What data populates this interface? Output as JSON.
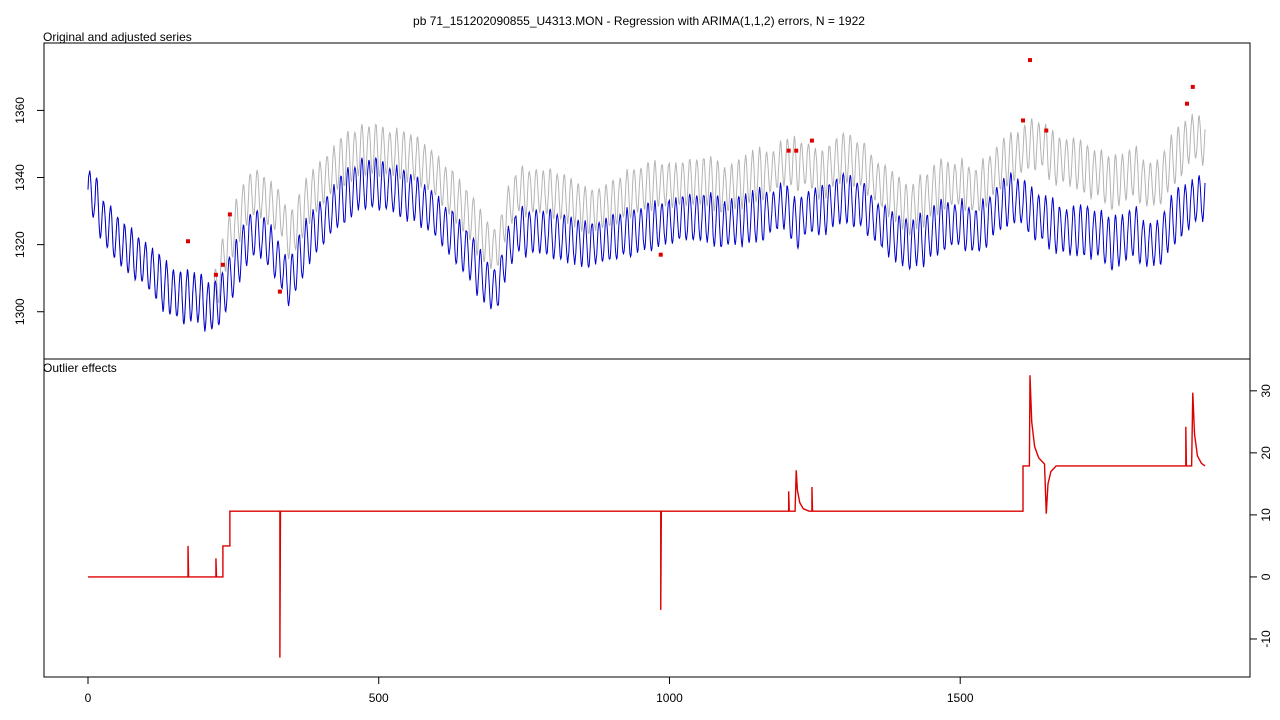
{
  "chart_data": {
    "type": "line",
    "title": "pb 71_151202090855_U4313.MON - Regression with ARIMA(1,1,2) errors, N = 1922",
    "n": 1922,
    "x_ticks": [
      0,
      500,
      1000,
      1500
    ],
    "colors": {
      "original": "#b4b4b4",
      "adjusted": "#0000cc",
      "outliers": "#dd0000",
      "frame": "#000000"
    },
    "panels": [
      {
        "subtitle": "Original and adjusted series",
        "ylim": [
          1288,
          1378
        ],
        "y_ticks": [
          1300,
          1320,
          1340,
          1360
        ],
        "y_axis_side": "left",
        "series": [
          {
            "role": "original",
            "points": [
              [
                0,
                1337
              ],
              [
                15,
                1332
              ],
              [
                30,
                1326
              ],
              [
                60,
                1320
              ],
              [
                100,
                1314
              ],
              [
                130,
                1308
              ],
              [
                160,
                1304
              ],
              [
                175,
                1305
              ],
              [
                190,
                1304
              ],
              [
                210,
                1301
              ],
              [
                220,
                1306
              ],
              [
                235,
                1318
              ],
              [
                245,
                1322
              ],
              [
                260,
                1328
              ],
              [
                275,
                1334
              ],
              [
                290,
                1336
              ],
              [
                310,
                1332
              ],
              [
                330,
                1330
              ],
              [
                345,
                1322
              ],
              [
                360,
                1326
              ],
              [
                380,
                1334
              ],
              [
                410,
                1340
              ],
              [
                440,
                1345
              ],
              [
                470,
                1348
              ],
              [
                500,
                1348
              ],
              [
                530,
                1347
              ],
              [
                560,
                1346
              ],
              [
                590,
                1342
              ],
              [
                620,
                1336
              ],
              [
                650,
                1330
              ],
              [
                680,
                1322
              ],
              [
                700,
                1318
              ],
              [
                710,
                1322
              ],
              [
                720,
                1330
              ],
              [
                740,
                1336
              ],
              [
                780,
                1336
              ],
              [
                820,
                1334
              ],
              [
                860,
                1330
              ],
              [
                900,
                1332
              ],
              [
                940,
                1336
              ],
              [
                980,
                1338
              ],
              [
                1020,
                1338
              ],
              [
                1060,
                1339
              ],
              [
                1100,
                1336
              ],
              [
                1140,
                1340
              ],
              [
                1180,
                1342
              ],
              [
                1200,
                1345
              ],
              [
                1215,
                1344
              ],
              [
                1240,
                1344
              ],
              [
                1260,
                1340
              ],
              [
                1280,
                1344
              ],
              [
                1300,
                1346
              ],
              [
                1330,
                1344
              ],
              [
                1360,
                1338
              ],
              [
                1390,
                1334
              ],
              [
                1410,
                1330
              ],
              [
                1440,
                1334
              ],
              [
                1470,
                1338
              ],
              [
                1500,
                1338
              ],
              [
                1530,
                1336
              ],
              [
                1560,
                1342
              ],
              [
                1590,
                1346
              ],
              [
                1610,
                1348
              ],
              [
                1620,
                1350
              ],
              [
                1640,
                1350
              ],
              [
                1660,
                1346
              ],
              [
                1680,
                1345
              ],
              [
                1700,
                1344
              ],
              [
                1720,
                1342
              ],
              [
                1740,
                1341
              ],
              [
                1760,
                1338
              ],
              [
                1780,
                1340
              ],
              [
                1800,
                1342
              ],
              [
                1820,
                1338
              ],
              [
                1840,
                1338
              ],
              [
                1860,
                1344
              ],
              [
                1880,
                1348
              ],
              [
                1895,
                1352
              ],
              [
                1910,
                1352
              ],
              [
                1921,
                1350
              ]
            ]
          },
          {
            "role": "adjusted",
            "points": [
              [
                0,
                1337
              ],
              [
                15,
                1332
              ],
              [
                30,
                1326
              ],
              [
                60,
                1320
              ],
              [
                100,
                1314
              ],
              [
                130,
                1308
              ],
              [
                160,
                1304
              ],
              [
                175,
                1305
              ],
              [
                190,
                1304
              ],
              [
                210,
                1301
              ],
              [
                220,
                1302
              ],
              [
                235,
                1306
              ],
              [
                245,
                1310
              ],
              [
                260,
                1316
              ],
              [
                275,
                1322
              ],
              [
                290,
                1324
              ],
              [
                310,
                1320
              ],
              [
                330,
                1314
              ],
              [
                345,
                1308
              ],
              [
                360,
                1314
              ],
              [
                380,
                1322
              ],
              [
                410,
                1328
              ],
              [
                440,
                1334
              ],
              [
                470,
                1338
              ],
              [
                500,
                1338
              ],
              [
                530,
                1336
              ],
              [
                560,
                1334
              ],
              [
                590,
                1330
              ],
              [
                620,
                1324
              ],
              [
                650,
                1318
              ],
              [
                680,
                1310
              ],
              [
                700,
                1306
              ],
              [
                710,
                1310
              ],
              [
                720,
                1318
              ],
              [
                740,
                1324
              ],
              [
                780,
                1324
              ],
              [
                820,
                1322
              ],
              [
                860,
                1320
              ],
              [
                900,
                1322
              ],
              [
                940,
                1324
              ],
              [
                980,
                1326
              ],
              [
                1020,
                1328
              ],
              [
                1060,
                1328
              ],
              [
                1100,
                1326
              ],
              [
                1140,
                1328
              ],
              [
                1180,
                1330
              ],
              [
                1200,
                1332
              ],
              [
                1215,
                1326
              ],
              [
                1240,
                1330
              ],
              [
                1260,
                1330
              ],
              [
                1280,
                1332
              ],
              [
                1300,
                1334
              ],
              [
                1330,
                1332
              ],
              [
                1360,
                1326
              ],
              [
                1390,
                1322
              ],
              [
                1410,
                1320
              ],
              [
                1440,
                1322
              ],
              [
                1470,
                1326
              ],
              [
                1500,
                1326
              ],
              [
                1530,
                1324
              ],
              [
                1560,
                1330
              ],
              [
                1590,
                1334
              ],
              [
                1610,
                1332
              ],
              [
                1620,
                1330
              ],
              [
                1640,
                1328
              ],
              [
                1660,
                1326
              ],
              [
                1680,
                1324
              ],
              [
                1700,
                1324
              ],
              [
                1720,
                1324
              ],
              [
                1740,
                1323
              ],
              [
                1760,
                1320
              ],
              [
                1780,
                1322
              ],
              [
                1800,
                1324
              ],
              [
                1820,
                1320
              ],
              [
                1840,
                1320
              ],
              [
                1860,
                1326
              ],
              [
                1880,
                1330
              ],
              [
                1895,
                1332
              ],
              [
                1910,
                1334
              ],
              [
                1921,
                1334
              ]
            ]
          }
        ],
        "outlier_points": [
          [
            172,
            1321
          ],
          [
            220,
            1311
          ],
          [
            232,
            1314
          ],
          [
            244,
            1329
          ],
          [
            330,
            1306
          ],
          [
            985,
            1317
          ],
          [
            1205,
            1348
          ],
          [
            1218,
            1348
          ],
          [
            1245,
            1351
          ],
          [
            1608,
            1357
          ],
          [
            1620,
            1375
          ],
          [
            1648,
            1354
          ],
          [
            1890,
            1362
          ],
          [
            1900,
            1367
          ]
        ]
      },
      {
        "subtitle": "Outlier effects",
        "ylim": [
          -15,
          34
        ],
        "y_ticks": [
          -10,
          0,
          10,
          20,
          30
        ],
        "y_axis_side": "right",
        "series": [
          {
            "role": "outliers",
            "points": [
              [
                0,
                0
              ],
              [
                172,
                0
              ],
              [
                172,
                5
              ],
              [
                173,
                0
              ],
              [
                220,
                0
              ],
              [
                220,
                3
              ],
              [
                221,
                0
              ],
              [
                232,
                0
              ],
              [
                232,
                5
              ],
              [
                244,
                5
              ],
              [
                244,
                10.6
              ],
              [
                330,
                10.6
              ],
              [
                330,
                -13
              ],
              [
                331,
                10.6
              ],
              [
                985,
                10.6
              ],
              [
                985,
                -5.3
              ],
              [
                986,
                10.6
              ],
              [
                1205,
                10.6
              ],
              [
                1205,
                13.8
              ],
              [
                1206,
                10.6
              ],
              [
                1216,
                10.6
              ],
              [
                1218,
                17.2
              ],
              [
                1220,
                14
              ],
              [
                1224,
                12
              ],
              [
                1230,
                11
              ],
              [
                1240,
                10.6
              ],
              [
                1245,
                10.6
              ],
              [
                1245,
                14.5
              ],
              [
                1246,
                10.6
              ],
              [
                1608,
                10.6
              ],
              [
                1608,
                17.9
              ],
              [
                1619,
                17.9
              ],
              [
                1620,
                32.5
              ],
              [
                1623,
                25
              ],
              [
                1628,
                21
              ],
              [
                1635,
                19.2
              ],
              [
                1645,
                18.2
              ],
              [
                1648,
                10.2
              ],
              [
                1651,
                15
              ],
              [
                1656,
                17
              ],
              [
                1665,
                17.9
              ],
              [
                1888,
                17.9
              ],
              [
                1888,
                24.2
              ],
              [
                1889,
                17.9
              ],
              [
                1898,
                17.9
              ],
              [
                1900,
                29.7
              ],
              [
                1903,
                23
              ],
              [
                1908,
                19.5
              ],
              [
                1915,
                18.3
              ],
              [
                1921,
                17.9
              ]
            ]
          }
        ]
      }
    ]
  }
}
